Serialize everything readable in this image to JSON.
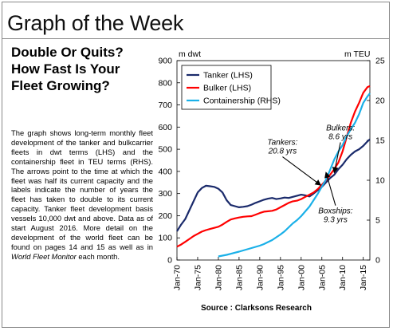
{
  "banner": "Graph of the Week",
  "headline": [
    "Double Or Quits?",
    "How Fast Is Your",
    "Fleet Growing?"
  ],
  "body_parts": [
    {
      "text": "The graph shows long-term monthly fleet development of the tanker and bulkcarrier fleets in dwt terms (LHS) and the containership fleet in TEU terms (RHS). The arrows point to the time at which the fleet was half its current capacity and the labels indicate the number of years the fleet has taken to double to its current capacity. Tanker fleet development basis vessels 10,000 dwt and above. Data as of start August 2016. More detail on the development of the world fleet can be found on pages 14 and 15 as well as in "
    },
    {
      "text": "World Fleet Monitor",
      "italic": true
    },
    {
      "text": " each month."
    }
  ],
  "source": "Source : Clarksons Research",
  "chart_data": {
    "type": "line",
    "y_left_label": "m dwt",
    "y_right_label": "m TEU",
    "y_left_lim": [
      0,
      900
    ],
    "y_left_ticks": [
      0,
      100,
      200,
      300,
      400,
      500,
      600,
      700,
      800,
      900
    ],
    "y_right_lim": [
      0,
      25
    ],
    "y_right_ticks": [
      0,
      5,
      10,
      15,
      20,
      25
    ],
    "x_lim": [
      1970,
      2016.6
    ],
    "x_ticks": [
      "Jan-70",
      "Jan-75",
      "Jan-80",
      "Jan-85",
      "Jan-90",
      "Jan-95",
      "Jan-00",
      "Jan-05",
      "Jan-10",
      "Jan-15"
    ],
    "grid": false,
    "legend_position": "top-left",
    "series": [
      {
        "name": "Tanker (LHS)",
        "axis": "left",
        "color": "#1a2a6b",
        "points": [
          [
            1970,
            130
          ],
          [
            1971,
            160
          ],
          [
            1972,
            185
          ],
          [
            1973,
            225
          ],
          [
            1974,
            265
          ],
          [
            1975,
            305
          ],
          [
            1976,
            325
          ],
          [
            1977,
            335
          ],
          [
            1978,
            333
          ],
          [
            1979,
            330
          ],
          [
            1980,
            322
          ],
          [
            1981,
            305
          ],
          [
            1982,
            270
          ],
          [
            1983,
            248
          ],
          [
            1984,
            243
          ],
          [
            1985,
            238
          ],
          [
            1986,
            240
          ],
          [
            1987,
            243
          ],
          [
            1988,
            250
          ],
          [
            1989,
            258
          ],
          [
            1990,
            265
          ],
          [
            1991,
            272
          ],
          [
            1992,
            277
          ],
          [
            1993,
            280
          ],
          [
            1994,
            275
          ],
          [
            1995,
            278
          ],
          [
            1996,
            282
          ],
          [
            1997,
            280
          ],
          [
            1998,
            285
          ],
          [
            1999,
            290
          ],
          [
            2000,
            295
          ],
          [
            2001,
            292
          ],
          [
            2002,
            287
          ],
          [
            2003,
            300
          ],
          [
            2004,
            315
          ],
          [
            2005,
            330
          ],
          [
            2006,
            350
          ],
          [
            2007,
            370
          ],
          [
            2008,
            385
          ],
          [
            2009,
            410
          ],
          [
            2010,
            430
          ],
          [
            2011,
            455
          ],
          [
            2012,
            475
          ],
          [
            2013,
            490
          ],
          [
            2014,
            500
          ],
          [
            2015,
            515
          ],
          [
            2016,
            535
          ],
          [
            2016.6,
            545
          ]
        ]
      },
      {
        "name": "Bulker (LHS)",
        "axis": "left",
        "color": "#ff0000",
        "points": [
          [
            1970,
            60
          ],
          [
            1971,
            70
          ],
          [
            1972,
            82
          ],
          [
            1973,
            95
          ],
          [
            1974,
            108
          ],
          [
            1975,
            118
          ],
          [
            1976,
            128
          ],
          [
            1977,
            135
          ],
          [
            1978,
            140
          ],
          [
            1979,
            145
          ],
          [
            1980,
            150
          ],
          [
            1981,
            160
          ],
          [
            1982,
            172
          ],
          [
            1983,
            183
          ],
          [
            1984,
            188
          ],
          [
            1985,
            192
          ],
          [
            1986,
            195
          ],
          [
            1987,
            197
          ],
          [
            1988,
            198
          ],
          [
            1989,
            205
          ],
          [
            1990,
            212
          ],
          [
            1991,
            218
          ],
          [
            1992,
            220
          ],
          [
            1993,
            222
          ],
          [
            1994,
            228
          ],
          [
            1995,
            238
          ],
          [
            1996,
            248
          ],
          [
            1997,
            258
          ],
          [
            1998,
            265
          ],
          [
            1999,
            268
          ],
          [
            2000,
            275
          ],
          [
            2001,
            285
          ],
          [
            2002,
            295
          ],
          [
            2003,
            305
          ],
          [
            2004,
            320
          ],
          [
            2005,
            340
          ],
          [
            2006,
            360
          ],
          [
            2007,
            385
          ],
          [
            2008,
            410
          ],
          [
            2009,
            440
          ],
          [
            2010,
            490
          ],
          [
            2011,
            555
          ],
          [
            2012,
            620
          ],
          [
            2013,
            670
          ],
          [
            2014,
            710
          ],
          [
            2015,
            755
          ],
          [
            2016,
            780
          ],
          [
            2016.6,
            785
          ]
        ]
      },
      {
        "name": "Containership (RHS)",
        "axis": "right",
        "color": "#1ab0e8",
        "points": [
          [
            1980,
            0.45
          ],
          [
            1981,
            0.55
          ],
          [
            1982,
            0.65
          ],
          [
            1983,
            0.78
          ],
          [
            1984,
            0.92
          ],
          [
            1985,
            1.05
          ],
          [
            1986,
            1.2
          ],
          [
            1987,
            1.35
          ],
          [
            1988,
            1.5
          ],
          [
            1989,
            1.65
          ],
          [
            1990,
            1.8
          ],
          [
            1991,
            2.0
          ],
          [
            1992,
            2.25
          ],
          [
            1993,
            2.5
          ],
          [
            1994,
            2.85
          ],
          [
            1995,
            3.2
          ],
          [
            1996,
            3.6
          ],
          [
            1997,
            4.1
          ],
          [
            1998,
            4.6
          ],
          [
            1999,
            5.0
          ],
          [
            2000,
            5.5
          ],
          [
            2001,
            6.1
          ],
          [
            2002,
            6.7
          ],
          [
            2003,
            7.5
          ],
          [
            2004,
            8.3
          ],
          [
            2005,
            9.2
          ],
          [
            2006,
            10.1
          ],
          [
            2007,
            11.3
          ],
          [
            2008,
            12.6
          ],
          [
            2009,
            13.6
          ],
          [
            2010,
            14.4
          ],
          [
            2011,
            15.5
          ],
          [
            2012,
            16.4
          ],
          [
            2013,
            17.2
          ],
          [
            2014,
            18.3
          ],
          [
            2015,
            19.7
          ],
          [
            2016,
            20.5
          ],
          [
            2016.6,
            20.9
          ]
        ]
      }
    ],
    "annotations": [
      {
        "lines": [
          "Tankers:",
          "20.8 yrs"
        ],
        "anchor_x": 1995.5,
        "anchor_y_left": 520,
        "arrow_to": [
          2004.7,
          338
        ]
      },
      {
        "lines": [
          "Bulkers:",
          "8.6 yrs"
        ],
        "anchor_x": 2009.5,
        "anchor_y_left": 585,
        "arrow_to": [
          2008.0,
          395
        ]
      },
      {
        "lines": [
          "Boxships:",
          "9.3 yrs"
        ],
        "anchor_x": 2008.3,
        "anchor_y_left": 210,
        "arrow_to": [
          2006.0,
          395
        ]
      }
    ]
  }
}
